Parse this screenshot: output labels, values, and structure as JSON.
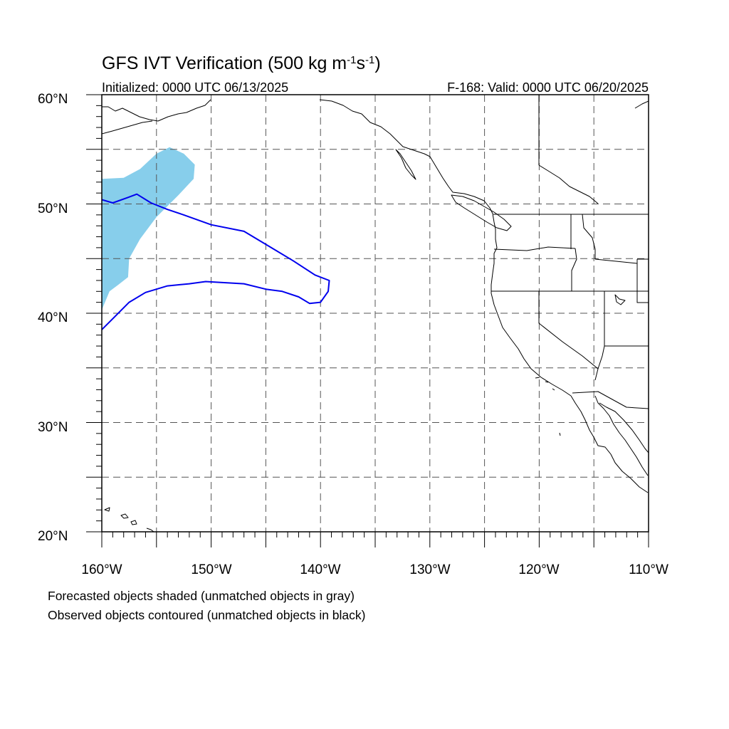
{
  "title": {
    "main": "GFS IVT Verification (500 kg m",
    "sup1": "-1",
    "mid": "s",
    "sup2": "-1",
    "end": ")"
  },
  "init_label": "Initialized: 0000 UTC 06/13/2025",
  "valid_label": "F-168: Valid: 0000 UTC 06/20/2025",
  "notes": [
    "Forecasted objects shaded (unmatched objects in gray)",
    "Observed objects contoured (unmatched objects in black)"
  ],
  "colors": {
    "forecast_fill": "#87CEEB",
    "observed_line": "#0000EE",
    "gridline": "#555555",
    "coast": "#000000"
  },
  "map": {
    "projection": "cylindrical-equidistant",
    "lon_range": [
      -160,
      -110
    ],
    "lat_range": [
      20,
      60
    ],
    "lat_tick_labels": [
      "20°N",
      "30°N",
      "40°N",
      "50°N",
      "60°N"
    ],
    "lon_tick_labels": [
      "160°W",
      "150°W",
      "140°W",
      "130°W",
      "120°W",
      "110°W"
    ],
    "gridlines": "dashed, every 5°",
    "forecast_object": [
      [
        -160.0,
        52.3
      ],
      [
        -158.0,
        52.4
      ],
      [
        -156.5,
        53.2
      ],
      [
        -155.0,
        54.6
      ],
      [
        -153.8,
        55.2
      ],
      [
        -152.5,
        54.6
      ],
      [
        -151.5,
        53.6
      ],
      [
        -151.6,
        52.3
      ],
      [
        -153.0,
        50.8
      ],
      [
        -155.0,
        48.8
      ],
      [
        -156.5,
        46.8
      ],
      [
        -157.5,
        45.0
      ],
      [
        -157.6,
        43.3
      ],
      [
        -158.5,
        42.6
      ],
      [
        -159.3,
        42.0
      ],
      [
        -160.0,
        40.3
      ]
    ],
    "observed_object": [
      [
        -160.0,
        50.4
      ],
      [
        -159.0,
        50.1
      ],
      [
        -157.6,
        50.6
      ],
      [
        -156.8,
        50.9
      ],
      [
        -155.5,
        50.1
      ],
      [
        -154.0,
        49.5
      ],
      [
        -152.5,
        49.0
      ],
      [
        -150.0,
        48.1
      ],
      [
        -147.0,
        47.5
      ],
      [
        -144.5,
        46.0
      ],
      [
        -142.5,
        44.8
      ],
      [
        -140.5,
        43.5
      ],
      [
        -139.2,
        43.0
      ],
      [
        -139.3,
        42.0
      ],
      [
        -140.0,
        41.0
      ],
      [
        -141.0,
        40.9
      ],
      [
        -142.0,
        41.5
      ],
      [
        -143.5,
        42.0
      ],
      [
        -145.0,
        42.2
      ],
      [
        -147.0,
        42.7
      ],
      [
        -150.5,
        42.9
      ],
      [
        -152.0,
        42.7
      ],
      [
        -154.0,
        42.5
      ],
      [
        -156.0,
        41.9
      ],
      [
        -157.5,
        41.0
      ],
      [
        -159.0,
        39.5
      ],
      [
        -160.0,
        38.5
      ]
    ]
  }
}
